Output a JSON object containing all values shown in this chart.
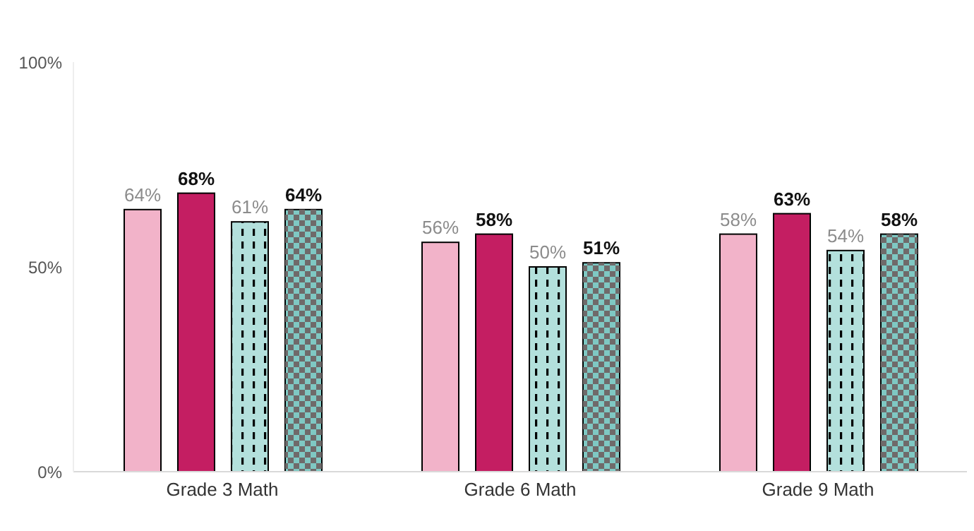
{
  "chart_data": {
    "type": "bar",
    "categories": [
      "Grade 3 Math",
      "Grade 6 Math",
      "Grade 9 Math"
    ],
    "series": [
      {
        "color": "#f2b3c9",
        "values": [
          64,
          56,
          58
        ],
        "value_labels": [
          "64%",
          "56%",
          "58%"
        ]
      },
      {
        "color": "#c41e62",
        "values": [
          68,
          58,
          63
        ],
        "value_labels": [
          "68%",
          "58%",
          "63%"
        ]
      },
      {
        "color": "#b3e0dc",
        "values": [
          61,
          50,
          54
        ],
        "value_labels": [
          "61%",
          "50%",
          "54%"
        ]
      },
      {
        "color": "#7fc8c3",
        "values": [
          64,
          51,
          58
        ],
        "value_labels": [
          "64%",
          "51%",
          "58%"
        ]
      }
    ],
    "ylim": [
      0,
      100
    ],
    "yticks": [
      {
        "value": 0,
        "label": "0%"
      },
      {
        "value": 50,
        "label": "50%"
      },
      {
        "value": 100,
        "label": "100%"
      }
    ],
    "grid": false,
    "legend": false
  }
}
